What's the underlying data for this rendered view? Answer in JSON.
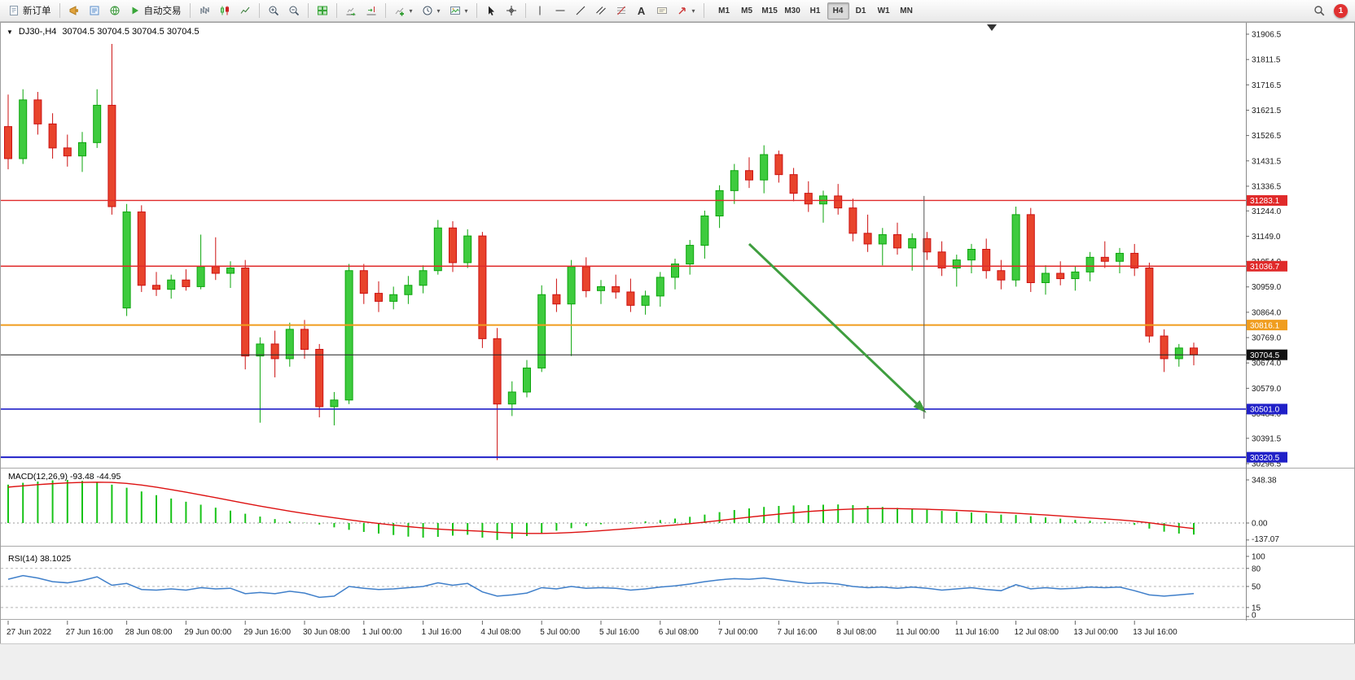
{
  "toolbar": {
    "new_order_label": "新订单",
    "auto_trading_label": "自动交易",
    "timeframes": [
      "M1",
      "M5",
      "M15",
      "M30",
      "H1",
      "H4",
      "D1",
      "W1",
      "MN"
    ],
    "active_timeframe": "H4",
    "notification_count": "1"
  },
  "chart_header": {
    "symbol_period": "DJ30-,H4",
    "ohlc": "30704.5 30704.5 30704.5 30704.5"
  },
  "chart_data": {
    "type": "candlestick",
    "symbol": "DJ30-",
    "timeframe": "H4",
    "style": {
      "bull": "#0ca50c",
      "bull_fill": "#3ecb3e",
      "bear": "#cc1111",
      "bear_fill": "#e8442c",
      "bid_line": "#222222",
      "bid_badge": "#111111"
    },
    "y_axis_ticks": [
      "31906.5",
      "31811.5",
      "31716.5",
      "31621.5",
      "31526.5",
      "31431.5",
      "31336.5",
      "31244.0",
      "31149.0",
      "31054.0",
      "30959.0",
      "30864.0",
      "30769.0",
      "30674.0",
      "30579.0",
      "30484.0",
      "30391.5",
      "30296.5"
    ],
    "x_labels": [
      "27 Jun 2022",
      "27 Jun 16:00",
      "28 Jun 08:00",
      "29 Jun 00:00",
      "29 Jun 16:00",
      "30 Jun 08:00",
      "1 Jul 00:00",
      "1 Jul 16:00",
      "4 Jul 08:00",
      "5 Jul 00:00",
      "5 Jul 16:00",
      "6 Jul 08:00",
      "7 Jul 00:00",
      "7 Jul 16:00",
      "8 Jul 08:00",
      "11 Jul 00:00",
      "11 Jul 16:00",
      "12 Jul 08:00",
      "13 Jul 00:00",
      "13 Jul 16:00"
    ],
    "label_every_n_candles": 4,
    "candles": [
      [
        31560,
        31680,
        31400,
        31440
      ],
      [
        31440,
        31700,
        31420,
        31660
      ],
      [
        31660,
        31690,
        31530,
        31570
      ],
      [
        31570,
        31610,
        31440,
        31480
      ],
      [
        31480,
        31530,
        31410,
        31450
      ],
      [
        31450,
        31540,
        31390,
        31500
      ],
      [
        31500,
        31700,
        31480,
        31640
      ],
      [
        31640,
        31870,
        31230,
        31260
      ],
      [
        30880,
        31270,
        30850,
        31240
      ],
      [
        31240,
        31265,
        30940,
        30965
      ],
      [
        30965,
        31015,
        30925,
        30950
      ],
      [
        30950,
        31005,
        30915,
        30985
      ],
      [
        30985,
        31025,
        30945,
        30960
      ],
      [
        30960,
        31155,
        30950,
        31035
      ],
      [
        31035,
        31145,
        30985,
        31010
      ],
      [
        31010,
        31055,
        30955,
        31030
      ],
      [
        31030,
        31060,
        30650,
        30700
      ],
      [
        30700,
        30770,
        30450,
        30745
      ],
      [
        30745,
        30795,
        30620,
        30690
      ],
      [
        30690,
        30825,
        30660,
        30800
      ],
      [
        30800,
        30835,
        30690,
        30725
      ],
      [
        30725,
        30745,
        30470,
        30510
      ],
      [
        30510,
        30565,
        30440,
        30535
      ],
      [
        30535,
        31045,
        30520,
        31020
      ],
      [
        31020,
        31045,
        30895,
        30935
      ],
      [
        30935,
        30980,
        30865,
        30905
      ],
      [
        30905,
        30960,
        30875,
        30930
      ],
      [
        30930,
        31000,
        30895,
        30965
      ],
      [
        30965,
        31040,
        30935,
        31020
      ],
      [
        31020,
        31210,
        31005,
        31180
      ],
      [
        31180,
        31205,
        31015,
        31050
      ],
      [
        31050,
        31175,
        31030,
        31150
      ],
      [
        31150,
        31165,
        30730,
        30765
      ],
      [
        30765,
        30805,
        30310,
        30520
      ],
      [
        30520,
        30605,
        30475,
        30565
      ],
      [
        30565,
        30685,
        30545,
        30655
      ],
      [
        30655,
        30965,
        30640,
        30930
      ],
      [
        30930,
        30990,
        30865,
        30895
      ],
      [
        30895,
        31060,
        30700,
        31035
      ],
      [
        31035,
        31070,
        30920,
        30945
      ],
      [
        30945,
        30985,
        30895,
        30960
      ],
      [
        30960,
        31005,
        30915,
        30940
      ],
      [
        30940,
        30990,
        30865,
        30890
      ],
      [
        30890,
        30945,
        30855,
        30925
      ],
      [
        30925,
        31015,
        30885,
        30995
      ],
      [
        30995,
        31065,
        30950,
        31045
      ],
      [
        31045,
        31135,
        31005,
        31115
      ],
      [
        31115,
        31245,
        31065,
        31225
      ],
      [
        31225,
        31340,
        31180,
        31320
      ],
      [
        31320,
        31420,
        31270,
        31395
      ],
      [
        31395,
        31445,
        31330,
        31360
      ],
      [
        31360,
        31490,
        31310,
        31455
      ],
      [
        31455,
        31470,
        31350,
        31380
      ],
      [
        31380,
        31405,
        31280,
        31310
      ],
      [
        31310,
        31355,
        31240,
        31270
      ],
      [
        31270,
        31320,
        31200,
        31300
      ],
      [
        31300,
        31345,
        31230,
        31255
      ],
      [
        31255,
        31290,
        31130,
        31160
      ],
      [
        31160,
        31230,
        31090,
        31120
      ],
      [
        31120,
        31180,
        31040,
        31155
      ],
      [
        31155,
        31200,
        31080,
        31105
      ],
      [
        31105,
        31160,
        31020,
        31140
      ],
      [
        31140,
        31165,
        31060,
        31090
      ],
      [
        31090,
        31130,
        31000,
        31030
      ],
      [
        31030,
        31080,
        30960,
        31060
      ],
      [
        31060,
        31120,
        31010,
        31100
      ],
      [
        31100,
        31140,
        30990,
        31020
      ],
      [
        31020,
        31060,
        30950,
        30985
      ],
      [
        30985,
        31260,
        30960,
        31230
      ],
      [
        31230,
        31255,
        30940,
        30975
      ],
      [
        30975,
        31040,
        30930,
        31010
      ],
      [
        31010,
        31055,
        30965,
        30990
      ],
      [
        30990,
        31035,
        30945,
        31015
      ],
      [
        31015,
        31090,
        30980,
        31070
      ],
      [
        31070,
        31130,
        31030,
        31055
      ],
      [
        31055,
        31105,
        31010,
        31085
      ],
      [
        31085,
        31120,
        31000,
        31030
      ],
      [
        31030,
        31050,
        30750,
        30775
      ],
      [
        30775,
        30800,
        30640,
        30690
      ],
      [
        30690,
        30745,
        30660,
        30730
      ],
      [
        30730,
        30750,
        30665,
        30704.5
      ]
    ],
    "bid": {
      "price": 30704.5,
      "label": "30704.5"
    },
    "levels": [
      {
        "price": 31283.1,
        "label": "31283.1",
        "color": "#e02a2a",
        "width": 1.4
      },
      {
        "price": 31036.7,
        "label": "31036.7",
        "color": "#e02a2a",
        "width": 1.4
      },
      {
        "price": 30816.1,
        "label": "30816.1",
        "color": "#f09d1e",
        "width": 2
      },
      {
        "price": 30501.0,
        "label": "30501.0",
        "color": "#2020c8",
        "width": 1.6
      },
      {
        "price": 30320.5,
        "label": "30320.5",
        "color": "#2020c8",
        "width": 2
      }
    ],
    "drawings": {
      "arrow": {
        "from_index": 50,
        "from_price": 31120,
        "to_index": 61.8,
        "to_price": 30495,
        "color": "#3f9e3f"
      },
      "vline": {
        "index": 61.8,
        "from_price": 31300,
        "to_price": 30465,
        "color": "#555555"
      }
    },
    "indicators": {
      "macd": {
        "label": "MACD(12,26,9) -93.48 -44.95",
        "params": "12,26,9",
        "value_main": "-93.48",
        "value_signal": "-44.95",
        "scale": [
          "348.38",
          "0.00",
          "-137.07"
        ],
        "colors": {
          "histogram": "#17c317",
          "signal": "#dd1111"
        },
        "histogram": [
          310,
          325,
          335,
          345,
          348,
          340,
          330,
          310,
          285,
          255,
          225,
          198,
          172,
          148,
          124,
          100,
          75,
          52,
          32,
          15,
          2,
          -12,
          -35,
          -55,
          -72,
          -85,
          -97,
          -110,
          -118,
          -112,
          -102,
          -95,
          -118,
          -137,
          -125,
          -105,
          -82,
          -62,
          -42,
          -25,
          -10,
          0,
          6,
          14,
          24,
          36,
          50,
          68,
          88,
          105,
          118,
          130,
          138,
          142,
          145,
          148,
          150,
          145,
          138,
          130,
          122,
          115,
          108,
          98,
          90,
          85,
          78,
          68,
          65,
          55,
          45,
          35,
          25,
          18,
          10,
          2,
          -15,
          -45,
          -70,
          -85,
          -93.48
        ],
        "signal": [
          290,
          300,
          310,
          318,
          324,
          328,
          330,
          328,
          320,
          307,
          290,
          270,
          249,
          227,
          205,
          182,
          159,
          137,
          116,
          96,
          77,
          59,
          42,
          26,
          10,
          -4,
          -17,
          -29,
          -40,
          -49,
          -56,
          -61,
          -67,
          -75,
          -81,
          -84,
          -84,
          -82,
          -77,
          -70,
          -62,
          -53,
          -44,
          -35,
          -26,
          -16,
          -5,
          7,
          20,
          34,
          47,
          60,
          72,
          83,
          93,
          101,
          108,
          113,
          116,
          117,
          116,
          114,
          111,
          107,
          102,
          97,
          91,
          85,
          79,
          72,
          65,
          57,
          49,
          41,
          33,
          25,
          15,
          2,
          -14,
          -31,
          -44.95
        ]
      },
      "rsi": {
        "label": "RSI(14) 38.1025",
        "value": "38.1025",
        "scale": [
          "100",
          "80",
          "50",
          "15",
          "0"
        ],
        "levels": [
          80,
          50,
          15
        ],
        "color": "#3f7fca",
        "values": [
          62,
          68,
          64,
          58,
          56,
          60,
          66,
          52,
          55,
          45,
          44,
          46,
          44,
          48,
          46,
          47,
          38,
          40,
          38,
          42,
          39,
          32,
          34,
          50,
          47,
          45,
          46,
          48,
          50,
          56,
          52,
          55,
          41,
          34,
          36,
          39,
          48,
          46,
          50,
          47,
          48,
          47,
          44,
          46,
          49,
          51,
          54,
          58,
          61,
          63,
          62,
          64,
          61,
          58,
          55,
          56,
          54,
          50,
          48,
          49,
          47,
          49,
          47,
          44,
          46,
          48,
          45,
          43,
          53,
          46,
          48,
          46,
          47,
          49,
          48,
          49,
          43,
          36,
          34,
          36,
          38.1
        ]
      }
    }
  }
}
